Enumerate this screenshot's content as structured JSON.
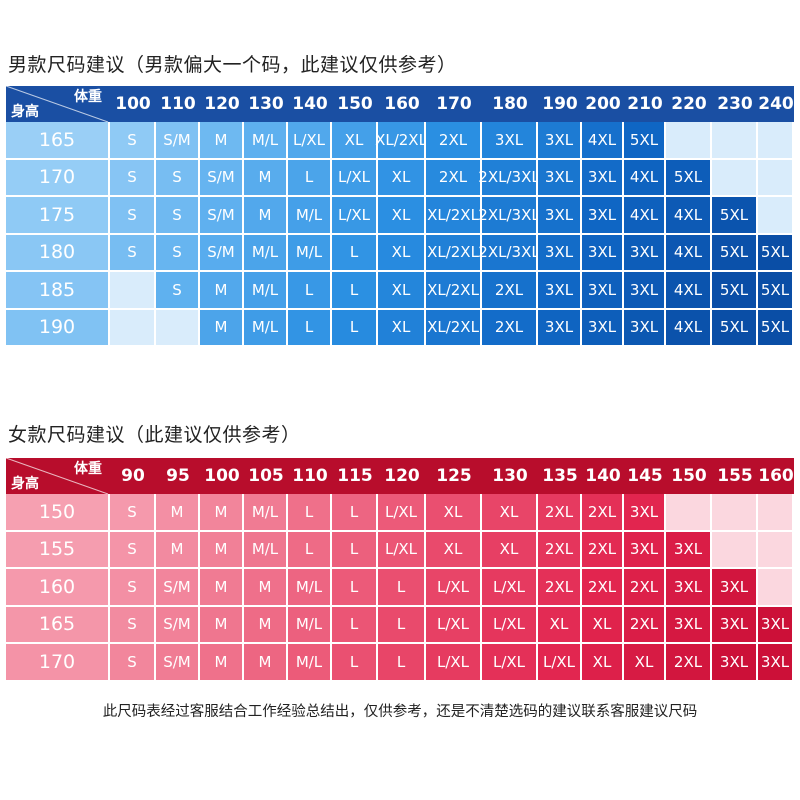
{
  "men": {
    "title": "男款尺码建议（男款偏大一个码，此建议仅供参考）",
    "corner_weight": "体重",
    "corner_height": "身高",
    "weights": [
      "100",
      "110",
      "120",
      "130",
      "140",
      "150",
      "160",
      "170",
      "180",
      "190",
      "200",
      "210",
      "220",
      "230",
      "240"
    ],
    "heights": [
      "165",
      "170",
      "175",
      "180",
      "185",
      "190"
    ],
    "rows": [
      [
        "S",
        "S/M",
        "M",
        "M/L",
        "L/XL",
        "XL",
        "XL/2XL",
        "2XL",
        "3XL",
        "3XL",
        "4XL",
        "5XL",
        "",
        "",
        ""
      ],
      [
        "S",
        "S",
        "S/M",
        "M",
        "L",
        "L/XL",
        "XL",
        "2XL",
        "2XL/3XL",
        "3XL",
        "3XL",
        "4XL",
        "5XL",
        "",
        ""
      ],
      [
        "S",
        "S",
        "S/M",
        "M",
        "M/L",
        "L/XL",
        "XL",
        "XL/2XL",
        "2XL/3XL",
        "3XL",
        "3XL",
        "4XL",
        "4XL",
        "5XL",
        ""
      ],
      [
        "S",
        "S",
        "S/M",
        "M/L",
        "M/L",
        "L",
        "XL",
        "XL/2XL",
        "2XL/3XL",
        "3XL",
        "3XL",
        "3XL",
        "4XL",
        "5XL",
        "5XL"
      ],
      [
        "",
        "S",
        "M",
        "M/L",
        "L",
        "L",
        "XL",
        "XL/2XL",
        "2XL",
        "3XL",
        "3XL",
        "3XL",
        "4XL",
        "5XL",
        "5XL"
      ],
      [
        "",
        "",
        "M",
        "M/L",
        "L",
        "L",
        "XL",
        "XL/2XL",
        "2XL",
        "3XL",
        "3XL",
        "3XL",
        "4XL",
        "5XL",
        "5XL"
      ]
    ],
    "colors": {
      "header": "#1a4fa3",
      "empty": "#d9ecfb",
      "gradient": [
        "#9fd2f7",
        "#5eb0ef",
        "#2a8fe2",
        "#0f66c4",
        "#0a4ea6"
      ]
    }
  },
  "women": {
    "title": "女款尺码建议（此建议仅供参考）",
    "corner_weight": "体重",
    "corner_height": "身高",
    "weights": [
      "90",
      "95",
      "100",
      "105",
      "110",
      "115",
      "120",
      "125",
      "130",
      "135",
      "140",
      "145",
      "150",
      "155",
      "160"
    ],
    "heights": [
      "150",
      "155",
      "160",
      "165",
      "170"
    ],
    "rows": [
      [
        "S",
        "M",
        "M",
        "M/L",
        "L",
        "L",
        "L/XL",
        "XL",
        "XL",
        "2XL",
        "2XL",
        "3XL",
        "",
        "",
        ""
      ],
      [
        "S",
        "M",
        "M",
        "M/L",
        "L",
        "L",
        "L/XL",
        "XL",
        "XL",
        "2XL",
        "2XL",
        "3XL",
        "3XL",
        "",
        ""
      ],
      [
        "S",
        "S/M",
        "M",
        "M",
        "M/L",
        "L",
        "L",
        "L/XL",
        "L/XL",
        "2XL",
        "2XL",
        "2XL",
        "3XL",
        "3XL",
        ""
      ],
      [
        "S",
        "S/M",
        "M",
        "M",
        "M/L",
        "L",
        "L",
        "L/XL",
        "L/XL",
        "XL",
        "XL",
        "2XL",
        "3XL",
        "3XL",
        "3XL"
      ],
      [
        "S",
        "S/M",
        "M",
        "M",
        "M/L",
        "L",
        "L",
        "L/XL",
        "L/XL",
        "L/XL",
        "XL",
        "XL",
        "2XL",
        "3XL",
        "3XL"
      ]
    ],
    "colors": {
      "header": "#b80d2c",
      "empty": "#fbd7df",
      "gradient": [
        "#f6a3b4",
        "#f07b93",
        "#ea4f70",
        "#e2254f",
        "#cc1038"
      ]
    }
  },
  "footnote": "此尺码表经过客服结合工作经验总结出，仅供参考，还是不清楚选码的建议联系客服建议尺码"
}
